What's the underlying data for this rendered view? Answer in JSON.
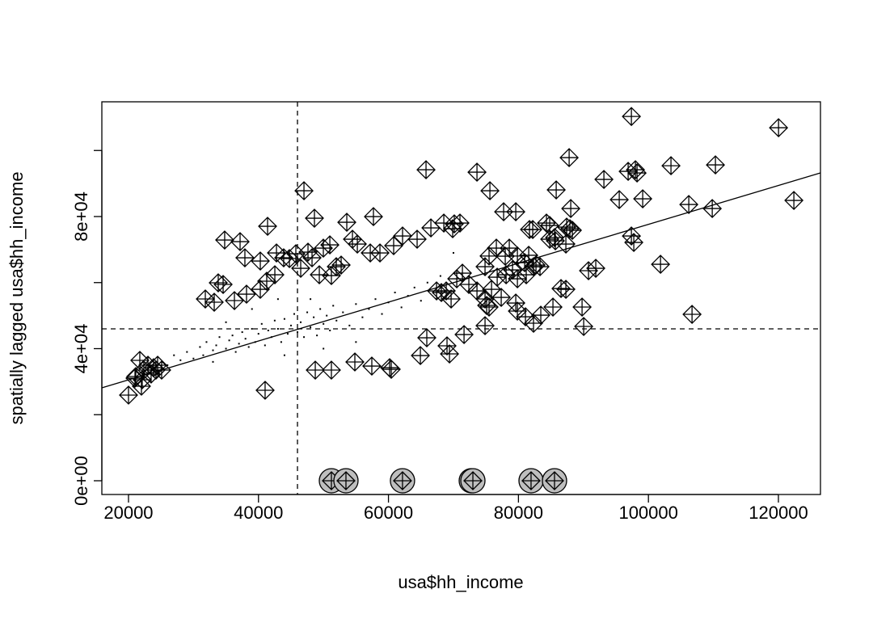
{
  "chart_data": {
    "type": "scatter",
    "xlabel": "usa$hh_income",
    "ylabel": "spatially lagged usa$hh_income",
    "xlim": [
      15900,
      126470
    ],
    "ylim": [
      -4160,
      114740
    ],
    "xticks": [
      20000,
      40000,
      60000,
      80000,
      100000,
      120000
    ],
    "yticks": [
      {
        "value": 0,
        "label": "0e+00"
      },
      {
        "value": 20000,
        "label": null
      },
      {
        "value": 40000,
        "label": "4e+04"
      },
      {
        "value": 60000,
        "label": null
      },
      {
        "value": 80000,
        "label": "8e+04"
      },
      {
        "value": 100000,
        "label": null
      }
    ],
    "color": "#000000",
    "circle_color": "#bebebe",
    "x_mean": 46000,
    "y_mean": 46000,
    "regression": {
      "x": [
        15900,
        126470
      ],
      "y": [
        28130,
        93210
      ]
    },
    "points": {
      "x": [
        26000,
        27000,
        28000,
        29000,
        30000,
        31000,
        31500,
        32000,
        33000,
        33500,
        34000,
        35000,
        35500,
        36000,
        36500,
        37000,
        37500,
        38000,
        38500,
        39000,
        39500,
        40000,
        40500,
        41000,
        41500,
        42000,
        42500,
        43000,
        43500,
        44000,
        44500,
        45000,
        45500,
        46000,
        46500,
        47000,
        47500,
        48000,
        48500,
        49000,
        49500,
        50000,
        50500,
        51000,
        51500,
        52000,
        53000,
        54000,
        55000,
        56000,
        57000,
        58000,
        59000,
        60000,
        61000,
        62000,
        63000,
        64000,
        65000,
        66000,
        68000,
        70000,
        43000,
        39000,
        35000,
        55000,
        50000,
        48000,
        44000,
        33000
      ],
      "y": [
        35000,
        38000,
        36500,
        39000,
        37000,
        40500,
        38000,
        42000,
        39500,
        41000,
        43500,
        40000,
        42500,
        44000,
        39000,
        41500,
        45000,
        43000,
        40500,
        46000,
        42000,
        44500,
        47500,
        41000,
        45500,
        43500,
        48500,
        46000,
        42000,
        49000,
        44500,
        47000,
        50500,
        45000,
        48000,
        43500,
        51000,
        46500,
        49500,
        44000,
        52000,
        47500,
        50000,
        45500,
        53000,
        48500,
        51000,
        47000,
        53500,
        49500,
        52000,
        55000,
        50500,
        54000,
        57000,
        52500,
        56000,
        58500,
        54500,
        60000,
        62000,
        69000,
        55000,
        52000,
        48000,
        42000,
        40000,
        55000,
        38000,
        36000
      ]
    },
    "influential": {
      "x": [
        97380,
        120020,
        87800,
        96880,
        98000,
        98250,
        103470,
        110310,
        65780,
        73620,
        93150,
        95510,
        85810,
        75610,
        122380,
        99120,
        106210,
        109820,
        47000,
        48610,
        53590,
        57690,
        41400,
        68520,
        71000,
        69880,
        77720,
        79590,
        81700,
        82200,
        84810,
        88050,
        88300,
        87920,
        84310,
        85680,
        87420,
        34800,
        37170,
        37910,
        40280,
        42770,
        43880,
        44760,
        45750,
        48240,
        47620,
        49980,
        50980,
        51970,
        54460,
        55210,
        57200,
        58690,
        60800,
        62170,
        64410,
        66530,
        70130,
        74860,
        75480,
        76600,
        77970,
        78590,
        79840,
        80960,
        81580,
        82700,
        83320,
        84810,
        85560,
        87300,
        90780,
        91900,
        101860,
        97380,
        97750,
        106710,
        31820,
        33190,
        33810,
        34560,
        36300,
        38160,
        40280,
        41270,
        42520,
        46500,
        49360,
        51220,
        52720,
        67400,
        68140,
        68890,
        69640,
        70510,
        71380,
        72370,
        73620,
        74860,
        75110,
        75860,
        76730,
        77350,
        78100,
        79090,
        79840,
        81200,
        82320,
        86550,
        87300,
        75480,
        79590,
        79840,
        81080,
        82320,
        83440,
        85310,
        89790,
        90040,
        74860,
        71630,
        65900,
        64910,
        69010,
        69390,
        54830,
        57440,
        60180,
        60430,
        48740,
        51220,
        41020,
        20000,
        21120,
        21740,
        21990,
        22360,
        22990,
        23480,
        23860,
        24230,
        24480,
        25100,
        21000,
        22110
      ],
      "y": [
        110300,
        106890,
        97840,
        93680,
        94170,
        93190,
        95390,
        95640,
        94170,
        93440,
        91240,
        85120,
        88060,
        87810,
        84880,
        85370,
        83650,
        82430,
        87810,
        79500,
        78270,
        79980,
        77050,
        78030,
        78030,
        76320,
        81450,
        81450,
        76070,
        76070,
        77290,
        82430,
        75830,
        76320,
        78030,
        72650,
        76800,
        72890,
        72400,
        67510,
        66530,
        68980,
        67510,
        67270,
        68730,
        67510,
        69220,
        70440,
        71420,
        64820,
        73140,
        71670,
        68980,
        68980,
        71180,
        74110,
        73140,
        76560,
        77780,
        64820,
        68050,
        70440,
        68000,
        70440,
        68050,
        66040,
        68270,
        65310,
        64820,
        73140,
        73640,
        71670,
        63600,
        64330,
        65550,
        74110,
        72160,
        50390,
        55040,
        54060,
        59930,
        59440,
        54550,
        56500,
        57970,
        60420,
        62370,
        64330,
        62370,
        62130,
        65310,
        57480,
        56990,
        57480,
        55040,
        61150,
        62860,
        59440,
        57480,
        55040,
        53080,
        57970,
        61640,
        55520,
        62370,
        63840,
        61150,
        62370,
        64820,
        58210,
        57970,
        52590,
        53810,
        51370,
        49650,
        47700,
        50140,
        52590,
        52590,
        46720,
        46960,
        44270,
        43290,
        37910,
        40850,
        38400,
        35960,
        34730,
        34240,
        33750,
        33510,
        33510,
        27400,
        25930,
        31550,
        36450,
        28620,
        33510,
        34980,
        32290,
        34240,
        33510,
        34980,
        33510,
        31060,
        30580
      ]
    },
    "circled": {
      "x": [
        51220,
        53460,
        62160,
        72740,
        72990,
        81940,
        85550
      ],
      "y": [
        0,
        0,
        0,
        0,
        0,
        0,
        0
      ]
    }
  }
}
